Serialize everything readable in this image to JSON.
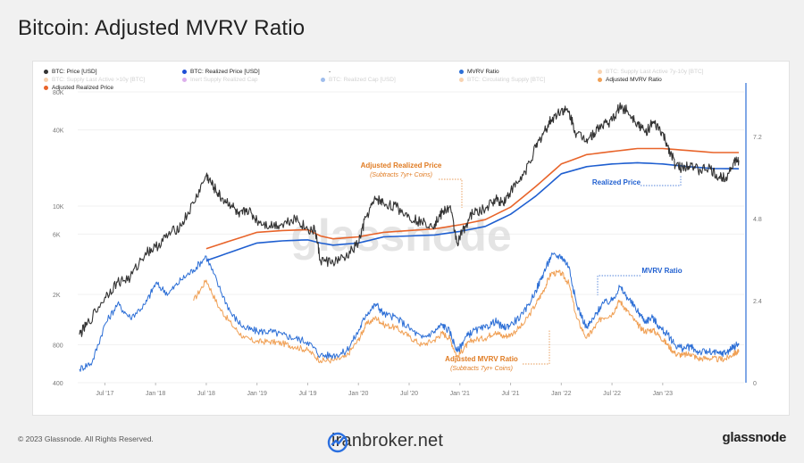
{
  "title": "Bitcoin: Adjusted MVRV Ratio",
  "legend": [
    {
      "label": "BTC: Price [USD]",
      "color": "#333333",
      "active": true
    },
    {
      "label": "BTC: Realized Price [USD]",
      "color": "#1f4fd6",
      "active": true
    },
    {
      "label": "-",
      "color": "#ffffff",
      "active": true
    },
    {
      "label": "MVRV Ratio",
      "color": "#2d6fd6",
      "active": true
    },
    {
      "label": "BTC: Supply Last Active 7y-10y [BTC]",
      "color": "#f0a055",
      "active": false
    },
    {
      "label": "BTC: Supply Last Active >10y [BTC]",
      "color": "#f0a055",
      "active": false
    },
    {
      "label": "Inert Supply Realized Cap",
      "color": "#b34fd6",
      "active": false
    },
    {
      "label": "BTC: Realized Cap [USD]",
      "color": "#2d6fd6",
      "active": false
    },
    {
      "label": "BTC: Circulating Supply [BTC]",
      "color": "#f0a055",
      "active": false
    },
    {
      "label": "Adjusted MVRV Ratio",
      "color": "#f0a055",
      "active": true
    },
    {
      "label": "Adjusted Realized Price",
      "color": "#e8642a",
      "active": true
    }
  ],
  "annotations": {
    "adj_realized": "Adjusted Realized Price",
    "adj_realized_sub": "(Subtracts 7yr+ Coins)",
    "realized": "Realized Price",
    "mvrv": "MVRV Ratio",
    "adj_mvrv": "Adjusted MVRV Ratio",
    "adj_mvrv_sub": "(Subtracts 7yr+ Coins)"
  },
  "watermark_text": "glassnode",
  "footer": {
    "copyright": "© 2023 Glassnode. All Rights Reserved.",
    "site": "iranbroker.net",
    "brand": "glassnode"
  },
  "colors": {
    "price": "#333333",
    "realized": "#1f5fd0",
    "adj_realized": "#e8642a",
    "mvrv": "#2d6fd6",
    "adj_mvrv": "#f0a055"
  },
  "chart_data": {
    "type": "line",
    "left_axis": {
      "scale": "log",
      "ticks": [
        400,
        800,
        2000,
        6000,
        10000,
        40000,
        80000
      ],
      "tick_labels": [
        "400",
        "800",
        "2K",
        "6K",
        "10K",
        "40K",
        "80K"
      ]
    },
    "right_axis": {
      "scale": "linear",
      "range": [
        0,
        8.5
      ],
      "ticks": [
        0,
        2.4,
        4.8,
        7.2
      ],
      "tick_labels": [
        "0",
        "2.4",
        "4.8",
        "7.2"
      ]
    },
    "x_axis": {
      "ticks": [
        "Jul '17",
        "Jan '18",
        "Jul '18",
        "Jan '19",
        "Jul '19",
        "Jan '20",
        "Jul '20",
        "Jan '21",
        "Jul '21",
        "Jan '22",
        "Jul '22",
        "Jan '23"
      ]
    },
    "series": [
      {
        "name": "BTC: Price [USD]",
        "axis": "left",
        "points": [
          [
            0,
            960
          ],
          [
            0.3,
            1150
          ],
          [
            1,
            1900
          ],
          [
            1.5,
            2500
          ],
          [
            2,
            2700
          ],
          [
            2.6,
            4300
          ],
          [
            3,
            4700
          ],
          [
            3.5,
            5900
          ],
          [
            4,
            7000
          ],
          [
            4.5,
            10500
          ],
          [
            5,
            17500
          ],
          [
            5.3,
            14000
          ],
          [
            5.6,
            11500
          ],
          [
            6,
            10200
          ],
          [
            6.3,
            8200
          ],
          [
            6.6,
            9500
          ],
          [
            7,
            7700
          ],
          [
            7.5,
            7000
          ],
          [
            8,
            7200
          ],
          [
            8.5,
            8100
          ],
          [
            9,
            6500
          ],
          [
            9.3,
            6400
          ],
          [
            9.5,
            3700
          ],
          [
            10,
            3600
          ],
          [
            10.5,
            3900
          ],
          [
            11,
            5100
          ],
          [
            11.3,
            8200
          ],
          [
            11.7,
            11500
          ],
          [
            12,
            10500
          ],
          [
            12.5,
            9800
          ],
          [
            13,
            8300
          ],
          [
            13.5,
            7400
          ],
          [
            14,
            7200
          ],
          [
            14.3,
            8800
          ],
          [
            14.6,
            9900
          ],
          [
            14.9,
            5100
          ],
          [
            15.2,
            6900
          ],
          [
            15.5,
            8800
          ],
          [
            16,
            9400
          ],
          [
            16.4,
            11400
          ],
          [
            16.7,
            10700
          ],
          [
            17,
            13000
          ],
          [
            17.5,
            17500
          ],
          [
            18,
            29000
          ],
          [
            18.3,
            38000
          ],
          [
            18.6,
            48000
          ],
          [
            19,
            58000
          ],
          [
            19.3,
            55000
          ],
          [
            19.6,
            37000
          ],
          [
            20,
            34000
          ],
          [
            20.3,
            38000
          ],
          [
            20.6,
            44000
          ],
          [
            21,
            47000
          ],
          [
            21.3,
            61000
          ],
          [
            21.6,
            57000
          ],
          [
            22,
            46000
          ],
          [
            22.3,
            38000
          ],
          [
            22.6,
            45000
          ],
          [
            22.9,
            40000
          ],
          [
            23.2,
            30000
          ],
          [
            23.5,
            21000
          ],
          [
            23.8,
            20000
          ],
          [
            24.1,
            22000
          ],
          [
            24.4,
            19000
          ],
          [
            24.8,
            20000
          ],
          [
            25.2,
            16800
          ],
          [
            25.5,
            17000
          ],
          [
            25.8,
            22000
          ],
          [
            26,
            23000
          ]
        ]
      },
      {
        "name": "BTC: Realized Price [USD]",
        "axis": "left",
        "points": [
          [
            5,
            3700
          ],
          [
            7,
            5100
          ],
          [
            8,
            5300
          ],
          [
            9,
            5400
          ],
          [
            9.5,
            5100
          ],
          [
            10,
            4900
          ],
          [
            11,
            5100
          ],
          [
            12,
            5700
          ],
          [
            14,
            5900
          ],
          [
            15,
            6300
          ],
          [
            16,
            6900
          ],
          [
            17,
            8600
          ],
          [
            18,
            12000
          ],
          [
            19,
            18000
          ],
          [
            20,
            20500
          ],
          [
            21,
            21500
          ],
          [
            22,
            22000
          ],
          [
            23,
            21500
          ],
          [
            24,
            20500
          ],
          [
            25,
            19800
          ],
          [
            26,
            19700
          ]
        ]
      },
      {
        "name": "Adjusted Realized Price",
        "axis": "left",
        "points": [
          [
            5,
            4600
          ],
          [
            7,
            6200
          ],
          [
            8,
            6400
          ],
          [
            9,
            6500
          ],
          [
            9.5,
            5800
          ],
          [
            10,
            5500
          ],
          [
            11,
            5700
          ],
          [
            12,
            6200
          ],
          [
            14,
            6600
          ],
          [
            15,
            7100
          ],
          [
            16,
            7800
          ],
          [
            17,
            9800
          ],
          [
            18,
            14300
          ],
          [
            19,
            21500
          ],
          [
            20,
            25500
          ],
          [
            21,
            27000
          ],
          [
            22,
            28500
          ],
          [
            23,
            28500
          ],
          [
            24,
            27500
          ],
          [
            25,
            26500
          ],
          [
            26,
            26500
          ]
        ]
      },
      {
        "name": "MVRV Ratio",
        "axis": "right",
        "points": [
          [
            0,
            0.4
          ],
          [
            0.5,
            0.6
          ],
          [
            1,
            1.7
          ],
          [
            1.5,
            2.3
          ],
          [
            2,
            1.9
          ],
          [
            2.6,
            2.3
          ],
          [
            3,
            2.9
          ],
          [
            3.5,
            2.6
          ],
          [
            4,
            3.0
          ],
          [
            4.5,
            3.3
          ],
          [
            5,
            3.7
          ],
          [
            5.5,
            2.8
          ],
          [
            6,
            2.0
          ],
          [
            6.5,
            1.6
          ],
          [
            7,
            1.5
          ],
          [
            7.5,
            1.5
          ],
          [
            8,
            1.4
          ],
          [
            8.5,
            1.3
          ],
          [
            9,
            1.2
          ],
          [
            9.5,
            0.8
          ],
          [
            10,
            0.8
          ],
          [
            10.5,
            0.9
          ],
          [
            11,
            1.5
          ],
          [
            11.3,
            2.0
          ],
          [
            11.7,
            2.3
          ],
          [
            12,
            2.0
          ],
          [
            12.5,
            1.9
          ],
          [
            13,
            1.6
          ],
          [
            13.5,
            1.3
          ],
          [
            14,
            1.5
          ],
          [
            14.3,
            1.7
          ],
          [
            14.6,
            1.5
          ],
          [
            14.9,
            0.9
          ],
          [
            15.2,
            1.3
          ],
          [
            15.5,
            1.5
          ],
          [
            16,
            1.6
          ],
          [
            16.4,
            1.8
          ],
          [
            16.7,
            1.6
          ],
          [
            17,
            1.7
          ],
          [
            17.5,
            2.0
          ],
          [
            18,
            2.7
          ],
          [
            18.3,
            3.2
          ],
          [
            18.6,
            3.7
          ],
          [
            19,
            3.7
          ],
          [
            19.3,
            3.4
          ],
          [
            19.6,
            2.3
          ],
          [
            20,
            1.6
          ],
          [
            20.3,
            1.9
          ],
          [
            20.6,
            2.3
          ],
          [
            21,
            2.4
          ],
          [
            21.3,
            2.8
          ],
          [
            21.6,
            2.5
          ],
          [
            22,
            2.1
          ],
          [
            22.3,
            1.8
          ],
          [
            22.6,
            1.9
          ],
          [
            22.9,
            1.6
          ],
          [
            23.2,
            1.4
          ],
          [
            23.5,
            1.1
          ],
          [
            23.8,
            1.0
          ],
          [
            24.1,
            1.05
          ],
          [
            24.4,
            0.9
          ],
          [
            24.8,
            0.9
          ],
          [
            25.2,
            0.85
          ],
          [
            25.5,
            0.88
          ],
          [
            25.8,
            1.05
          ],
          [
            26,
            1.15
          ]
        ]
      },
      {
        "name": "Adjusted MVRV Ratio",
        "axis": "right",
        "points": [
          [
            4.5,
            2.4
          ],
          [
            5,
            3.0
          ],
          [
            5.5,
            2.2
          ],
          [
            6,
            1.7
          ],
          [
            6.5,
            1.3
          ],
          [
            7,
            1.2
          ],
          [
            7.5,
            1.2
          ],
          [
            8,
            1.15
          ],
          [
            8.5,
            1.05
          ],
          [
            9,
            0.95
          ],
          [
            9.5,
            0.65
          ],
          [
            10,
            0.65
          ],
          [
            10.5,
            0.75
          ],
          [
            11,
            1.25
          ],
          [
            11.3,
            1.7
          ],
          [
            11.7,
            1.9
          ],
          [
            12,
            1.7
          ],
          [
            12.5,
            1.6
          ],
          [
            13,
            1.35
          ],
          [
            13.5,
            1.1
          ],
          [
            14,
            1.25
          ],
          [
            14.3,
            1.45
          ],
          [
            14.6,
            1.3
          ],
          [
            14.9,
            0.75
          ],
          [
            15.2,
            1.05
          ],
          [
            15.5,
            1.25
          ],
          [
            16,
            1.3
          ],
          [
            16.4,
            1.5
          ],
          [
            16.7,
            1.35
          ],
          [
            17,
            1.4
          ],
          [
            17.5,
            1.7
          ],
          [
            18,
            2.3
          ],
          [
            18.3,
            2.7
          ],
          [
            18.6,
            3.2
          ],
          [
            19,
            3.2
          ],
          [
            19.3,
            2.9
          ],
          [
            19.6,
            1.9
          ],
          [
            20,
            1.3
          ],
          [
            20.3,
            1.6
          ],
          [
            20.6,
            1.9
          ],
          [
            21,
            2.0
          ],
          [
            21.3,
            2.4
          ],
          [
            21.6,
            2.1
          ],
          [
            22,
            1.7
          ],
          [
            22.3,
            1.5
          ],
          [
            22.6,
            1.55
          ],
          [
            22.9,
            1.35
          ],
          [
            23.2,
            1.1
          ],
          [
            23.5,
            0.85
          ],
          [
            23.8,
            0.8
          ],
          [
            24.1,
            0.85
          ],
          [
            24.4,
            0.7
          ],
          [
            24.8,
            0.72
          ],
          [
            25.2,
            0.68
          ],
          [
            25.5,
            0.7
          ],
          [
            25.8,
            0.85
          ],
          [
            26,
            0.9
          ]
        ]
      }
    ]
  }
}
